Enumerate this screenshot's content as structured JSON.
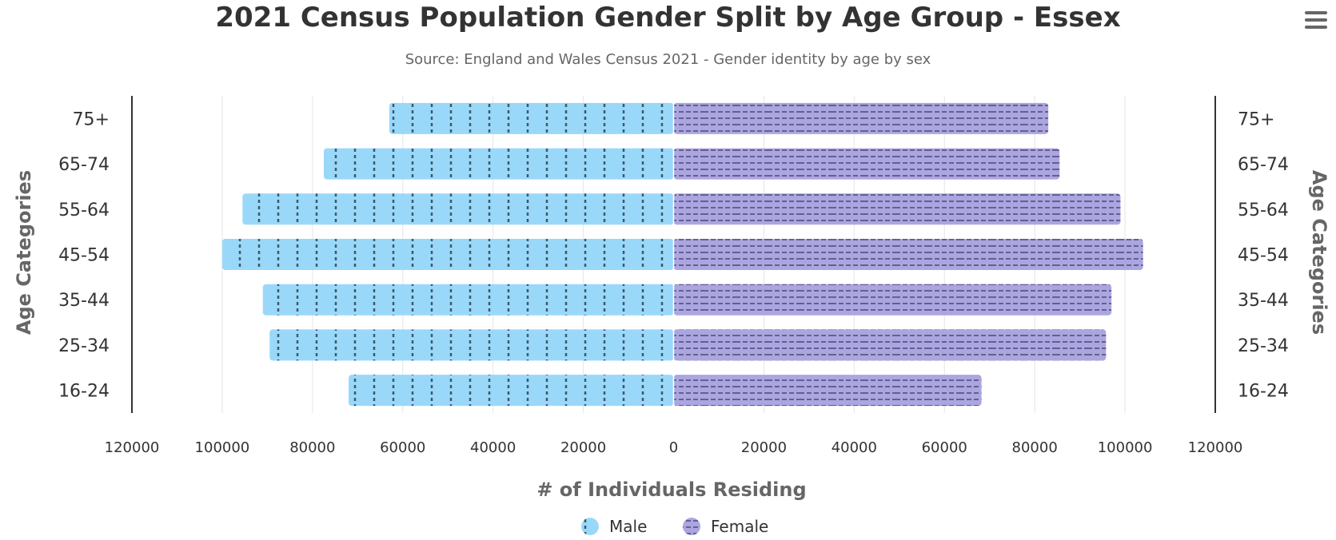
{
  "title": "2021 Census Population Gender Split by Age Group - Essex",
  "subtitle": "Source: England and Wales Census 2021 - Gender identity by age by sex",
  "menu": {
    "icon": "hamburger-menu-icon"
  },
  "colors": {
    "male": "#9ad8fa",
    "female": "#aba5e0",
    "male_pattern": "#3b5a6a",
    "female_pattern": "#4e4878",
    "axis": "#333333",
    "grid": "#e6e6e6"
  },
  "chart_data": {
    "type": "bar",
    "orientation": "horizontal",
    "layout": "population-pyramid",
    "title": "2021 Census Population Gender Split by Age Group - Essex",
    "subtitle": "Source: England and Wales Census 2021 - Gender identity by age by sex",
    "xlabel": "# of Individuals Residing",
    "ylabel": "Age Categories",
    "ylabel_right": "Age Categories",
    "categories": [
      "75+",
      "65-74",
      "55-64",
      "45-54",
      "35-44",
      "25-34",
      "16-24"
    ],
    "series": [
      {
        "name": "Male",
        "side": "left",
        "values": [
          63000,
          77500,
          95500,
          100000,
          91000,
          89500,
          72000
        ]
      },
      {
        "name": "Female",
        "side": "right",
        "values": [
          83000,
          85500,
          99000,
          104000,
          97000,
          95800,
          68200
        ]
      }
    ],
    "xlim": [
      -120000,
      120000
    ],
    "x_ticks": [
      "120000",
      "100000",
      "80000",
      "60000",
      "40000",
      "20000",
      "0",
      "20000",
      "40000",
      "60000",
      "80000",
      "100000",
      "120000"
    ],
    "grid": true,
    "legend": {
      "position": "bottom-center",
      "entries": [
        "Male",
        "Female"
      ]
    }
  }
}
